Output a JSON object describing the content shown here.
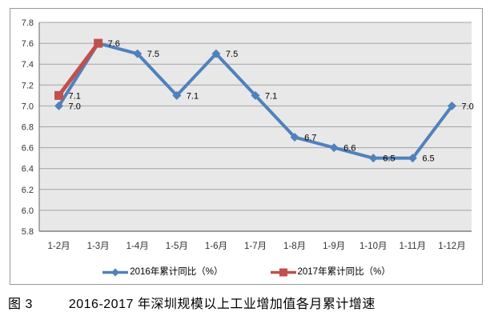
{
  "caption": {
    "figure_label": "图 3",
    "title": "2016-2017 年深圳规模以上工业增加值各月累计增速"
  },
  "chart_data": {
    "type": "line",
    "title": "2016-2017 年深圳规模以上工业增加值各月累计增速",
    "categories": [
      "1-2月",
      "1-3月",
      "1-4月",
      "1-5月",
      "1-6月",
      "1-7月",
      "1-8月",
      "1-9月",
      "1-10月",
      "1-11月",
      "1-12月"
    ],
    "series": [
      {
        "name": "2016年累计同比（%）",
        "color": "#4F81BD",
        "marker": "diamond",
        "line_width": 4,
        "values": [
          7.0,
          7.6,
          7.5,
          7.1,
          7.5,
          7.1,
          6.7,
          6.6,
          6.5,
          6.5,
          7.0
        ],
        "show_labels": [
          true,
          true,
          true,
          true,
          true,
          true,
          true,
          true,
          true,
          true,
          true
        ]
      },
      {
        "name": "2017年累计同比（%）",
        "color": "#C0504D",
        "marker": "square",
        "line_width": 5,
        "values": [
          7.1,
          7.6,
          null,
          null,
          null,
          null,
          null,
          null,
          null,
          null,
          null
        ],
        "show_labels": [
          true,
          false,
          false,
          false,
          false,
          false,
          false,
          false,
          false,
          false,
          false
        ]
      }
    ],
    "ylim": [
      5.8,
      7.8
    ],
    "yticks": [
      5.8,
      6.0,
      6.2,
      6.4,
      6.6,
      6.8,
      7.0,
      7.2,
      7.4,
      7.6,
      7.8
    ],
    "xlabel": "",
    "ylabel": "",
    "grid": "horizontal",
    "legend_position": "bottom",
    "data_labels": true,
    "colors": {
      "plot_bg": "#E8E8E8",
      "gridline": "#A3A3A3",
      "axis_line": "#808080",
      "tick_text": "#333333",
      "label_text": "#000000",
      "frame_border": "#9A9A9A"
    }
  }
}
